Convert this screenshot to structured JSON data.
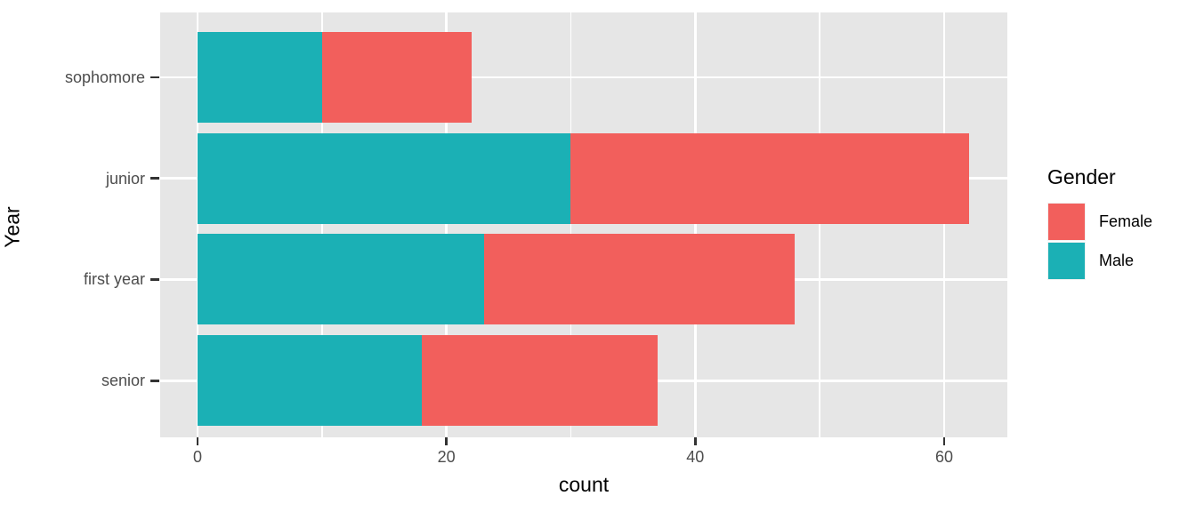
{
  "figure": {
    "x_axis_title": "count",
    "y_axis_title": "Year",
    "legend_title": "Gender"
  },
  "chart_data": {
    "type": "bar",
    "orientation": "horizontal",
    "stacked": true,
    "title": "",
    "xlabel": "count",
    "ylabel": "Year",
    "categories": [
      "sophomore",
      "junior",
      "first year",
      "senior"
    ],
    "series": [
      {
        "name": "Male",
        "color": "#1BB0B5",
        "values": [
          10,
          30,
          23,
          18
        ]
      },
      {
        "name": "Female",
        "color": "#F25F5C",
        "values": [
          12,
          32,
          25,
          19
        ]
      }
    ],
    "stack_totals": [
      22,
      62,
      48,
      37
    ],
    "draw_order_note": "Male segment at axis base, Female stacked outward",
    "xlim": [
      0,
      65
    ],
    "xticks": [
      "0",
      "20",
      "40",
      "60"
    ],
    "xtick_values": [
      0,
      20,
      40,
      60
    ],
    "xticks_minor": [
      10,
      30,
      50
    ],
    "grid": "white major gridlines at x ticks, white minor gridlines between; horizontal major gridline per category",
    "panel_bg": "#E6E6E6",
    "gridline_color": "#FFFFFF",
    "legend": {
      "title": "Gender",
      "position": "right",
      "entries": [
        {
          "label": "Female",
          "color": "#F25F5C"
        },
        {
          "label": "Male",
          "color": "#1BB0B5"
        }
      ]
    }
  },
  "colors": {
    "female": "#F25F5C",
    "male": "#1BB0B5",
    "panel_background": "#E6E6E6",
    "gridline": "#FFFFFF",
    "tick_text": "#4D4D4D",
    "tick_mark": "#333333",
    "axis_title_text": "#000000"
  }
}
